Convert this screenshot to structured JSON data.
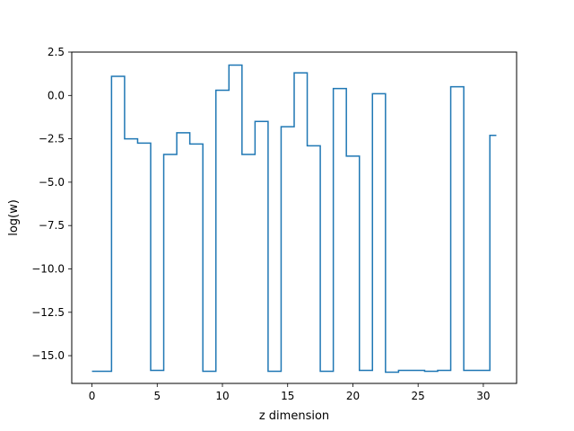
{
  "chart_data": {
    "type": "line",
    "drawstyle": "steps-mid",
    "title": "",
    "xlabel": "z dimension",
    "ylabel": "log(w)",
    "xlim": [
      -1.55,
      32.55
    ],
    "ylim": [
      -16.6,
      2.5
    ],
    "xticks": [
      "0",
      "5",
      "10",
      "15",
      "20",
      "25",
      "30"
    ],
    "yticks": [
      "2.5",
      "0.0",
      "−2.5",
      "−5.0",
      "−7.5",
      "−10.0",
      "−12.5",
      "−15.0"
    ],
    "grid": false,
    "legend": "none",
    "line_color": "#1f77b4",
    "x": [
      0,
      1,
      2,
      3,
      4,
      5,
      6,
      7,
      8,
      9,
      10,
      11,
      12,
      13,
      14,
      15,
      16,
      17,
      18,
      19,
      20,
      21,
      22,
      23,
      24,
      25,
      26,
      27,
      28,
      29,
      30,
      31
    ],
    "values": [
      -15.9,
      -15.9,
      1.1,
      -2.5,
      -2.75,
      -15.85,
      -3.4,
      -2.15,
      -2.8,
      -15.9,
      0.3,
      1.75,
      -3.4,
      -1.5,
      -15.9,
      -1.8,
      1.3,
      -2.9,
      -15.9,
      0.4,
      -3.5,
      -15.85,
      0.1,
      -15.95,
      -15.85,
      -15.85,
      -15.9,
      -15.85,
      0.5,
      -15.85,
      -15.85,
      -2.3
    ]
  }
}
